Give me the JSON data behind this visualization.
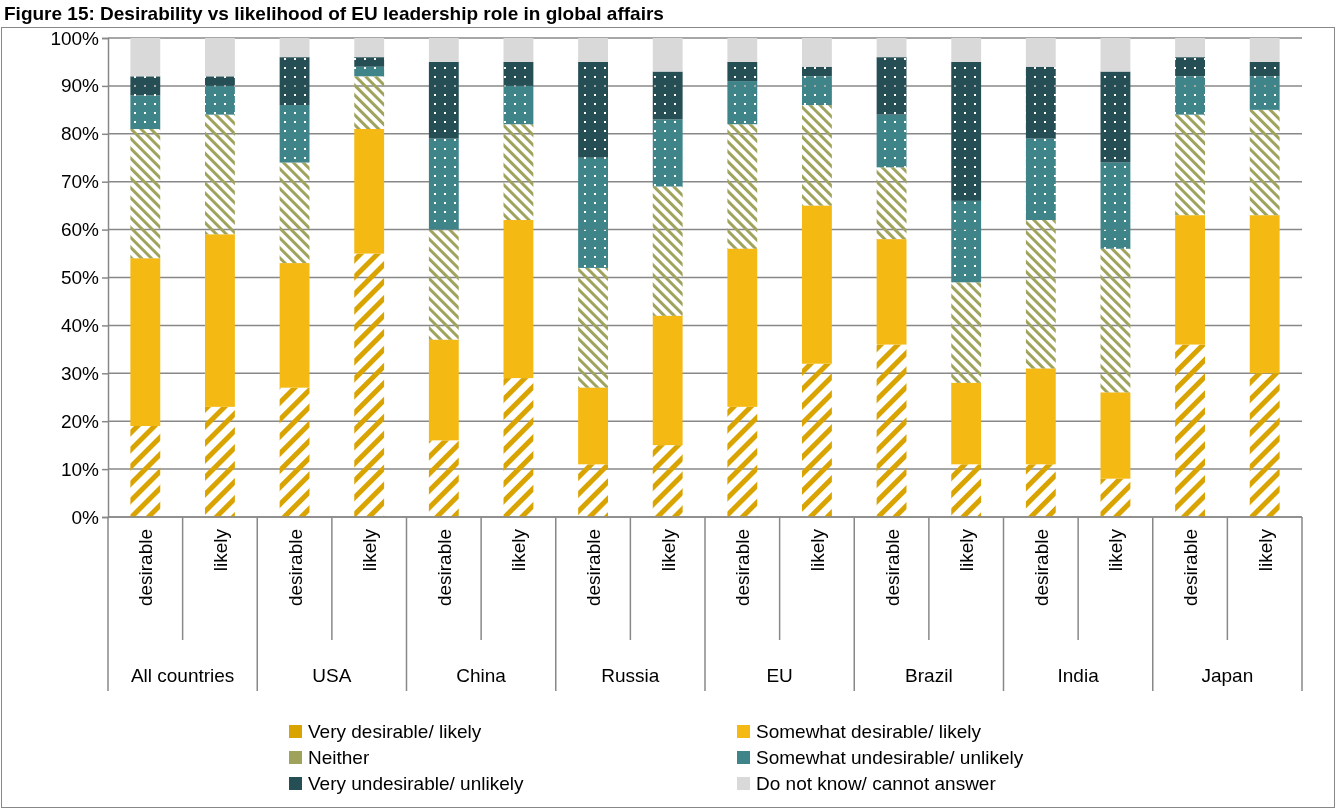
{
  "chart_data": {
    "type": "bar",
    "title": "Figure 15: Desirability vs likelihood of EU leadership role in global affairs",
    "stacked": true,
    "grid": "y",
    "legend": "bottom",
    "categories": [
      "desirable",
      "likely",
      "desirable",
      "likely",
      "desirable",
      "likely",
      "desirable",
      "likely",
      "desirable",
      "likely",
      "desirable",
      "likely",
      "desirable",
      "likely",
      "desirable",
      "likely"
    ],
    "annotations": [
      "All countries",
      "USA",
      "China",
      "Russia",
      "EU",
      "Brazil",
      "India",
      "Japan"
    ],
    "ylim": [
      0,
      100
    ],
    "yticks": [
      {
        "value": 0,
        "label": "0%"
      },
      {
        "value": 10,
        "label": "10%"
      },
      {
        "value": 20,
        "label": "20%"
      },
      {
        "value": 30,
        "label": "30%"
      },
      {
        "value": 40,
        "label": "40%"
      },
      {
        "value": 50,
        "label": "50%"
      },
      {
        "value": 60,
        "label": "60%"
      },
      {
        "value": 70,
        "label": "70%"
      },
      {
        "value": 80,
        "label": "80%"
      },
      {
        "value": 90,
        "label": "90%"
      },
      {
        "value": 100,
        "label": "100%"
      }
    ],
    "series": [
      {
        "name": "Very desirable/ likely",
        "color": "#d9a300",
        "values": [
          19,
          23,
          27,
          55,
          16,
          29,
          11,
          15,
          23,
          32,
          36,
          11,
          11,
          8,
          36,
          30
        ]
      },
      {
        "name": "Somewhat desirable/ likely",
        "color": "#f5b914",
        "values": [
          35,
          36,
          26,
          26,
          21,
          33,
          16,
          27,
          33,
          33,
          22,
          17,
          20,
          18,
          27,
          33
        ]
      },
      {
        "name": "Neither",
        "color": "#9ea25a",
        "values": [
          27,
          25,
          21,
          11,
          23,
          20,
          25,
          27,
          26,
          21,
          15,
          21,
          31,
          30,
          21,
          22
        ]
      },
      {
        "name": "Somewhat undesirable/ unlikely",
        "color": "#3e8489",
        "values": [
          7,
          6,
          12,
          2,
          19,
          8,
          23,
          14,
          9,
          6,
          11,
          17,
          17,
          18,
          8,
          7
        ]
      },
      {
        "name": "Very undesirable/ unlikely",
        "color": "#264f55",
        "values": [
          4,
          2,
          10,
          2,
          16,
          5,
          20,
          10,
          4,
          2,
          12,
          29,
          15,
          19,
          4,
          3
        ]
      },
      {
        "name": "Do not know/ cannot answer",
        "color": "#d9d9d9",
        "values": [
          8,
          8,
          4,
          4,
          5,
          5,
          5,
          7,
          5,
          6,
          4,
          5,
          6,
          7,
          4,
          5
        ]
      }
    ]
  }
}
